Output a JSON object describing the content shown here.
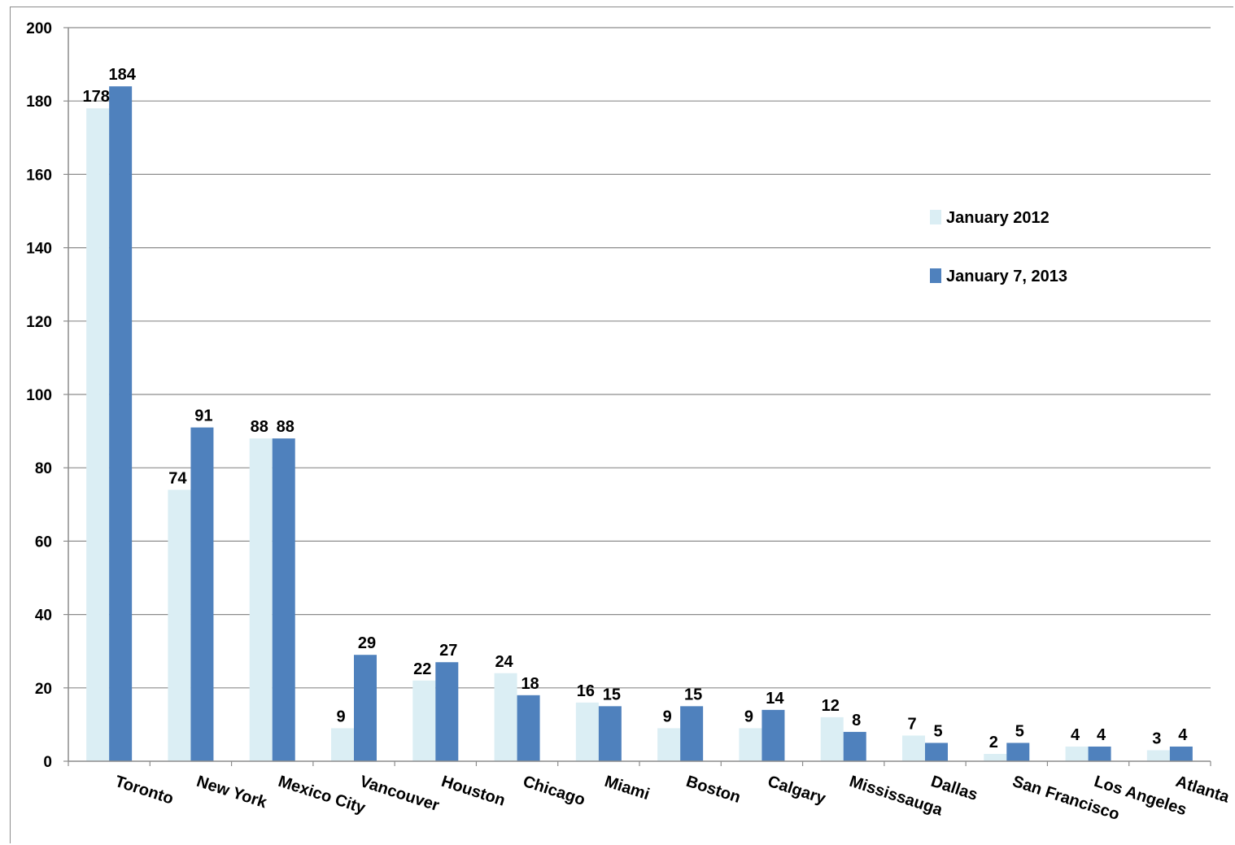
{
  "chart_data": {
    "type": "bar",
    "title": "",
    "xlabel": "",
    "ylabel": "",
    "ylim": [
      0,
      200
    ],
    "yticks": [
      0,
      20,
      40,
      60,
      80,
      100,
      120,
      140,
      160,
      180,
      200
    ],
    "grid": true,
    "legend_position": "right",
    "categories": [
      "Toronto",
      "New York",
      "Mexico City",
      "Vancouver",
      "Houston",
      "Chicago",
      "Miami",
      "Boston",
      "Calgary",
      "Mississauga",
      "Dallas",
      "San Francisco",
      "Los Angeles",
      "Atlanta"
    ],
    "series": [
      {
        "name": "January 2012",
        "color": "#dbeef4",
        "values": [
          178,
          74,
          88,
          9,
          22,
          24,
          16,
          9,
          9,
          12,
          7,
          2,
          4,
          3
        ]
      },
      {
        "name": "January 7, 2013",
        "color": "#4f81bd",
        "values": [
          184,
          91,
          88,
          29,
          27,
          18,
          15,
          15,
          14,
          8,
          5,
          5,
          4,
          4
        ]
      }
    ],
    "gridline_color": "#8c8c8c"
  }
}
